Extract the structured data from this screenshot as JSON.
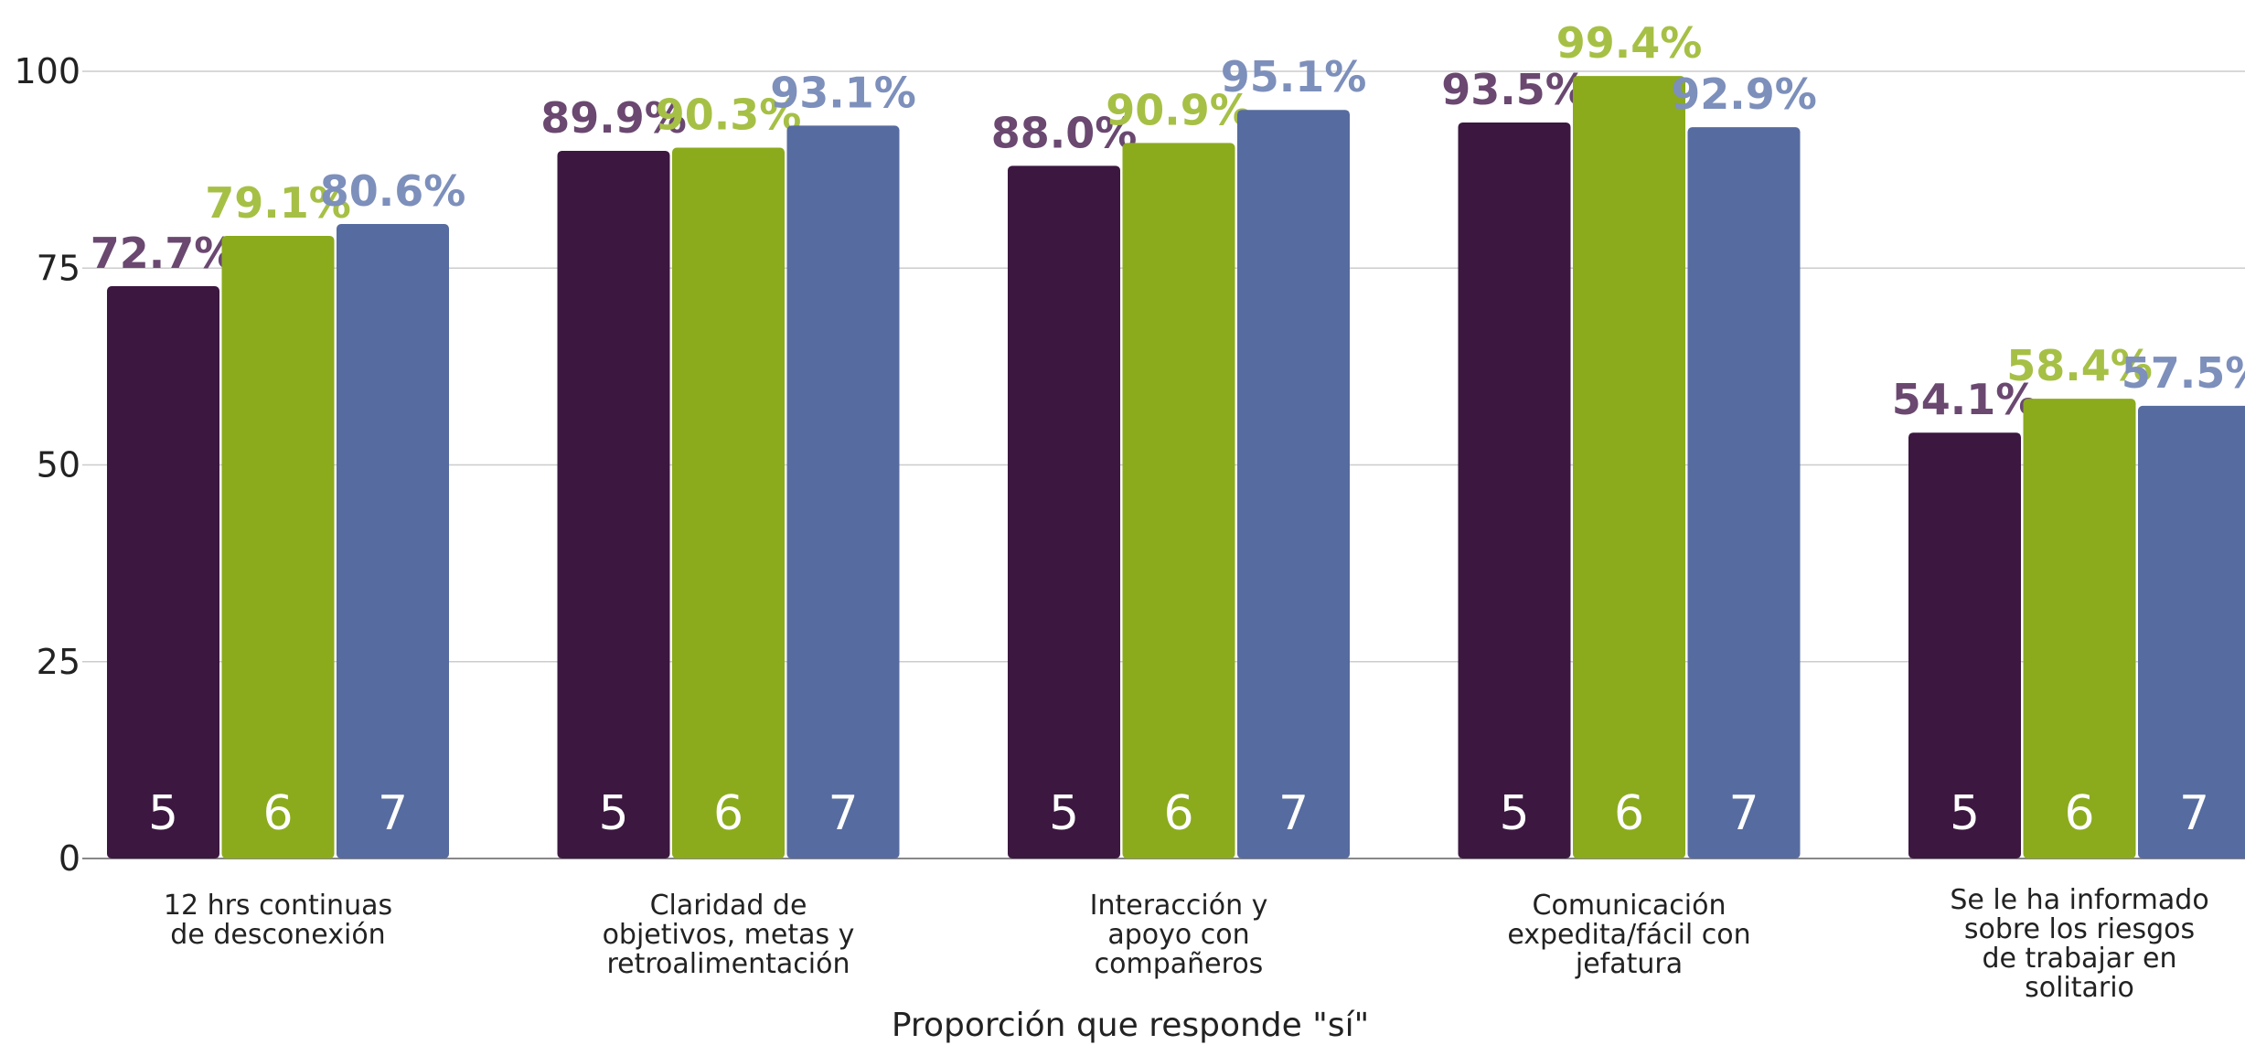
{
  "chart_data": {
    "type": "bar",
    "title": "",
    "xlabel": "Proporción que responde \"sí\"",
    "ylabel": "",
    "ylim": [
      0,
      100
    ],
    "yticks": [
      0,
      25,
      50,
      75,
      100
    ],
    "grid": true,
    "categories": [
      [
        "12 hrs continuas",
        "de desconexión"
      ],
      [
        "Claridad de",
        "objetivos, metas y",
        "retroalimentación"
      ],
      [
        "Interacción y",
        "apoyo con",
        "compañeros"
      ],
      [
        "Comunicación",
        "expedita/fácil con",
        "jefatura"
      ],
      [
        "Se le ha informado",
        "sobre los riesgos",
        "de trabajar en",
        "solitario"
      ]
    ],
    "series": [
      {
        "bar_label": "5",
        "color": "#3c1740",
        "label_color": "#6a4870",
        "values": [
          72.7,
          89.9,
          88.0,
          93.5,
          54.1
        ],
        "value_labels": [
          "72.7%",
          "89.9%",
          "88.0%",
          "93.5%",
          "54.1%"
        ]
      },
      {
        "bar_label": "6",
        "color": "#8bab1d",
        "label_color": "#a6c046",
        "values": [
          79.1,
          90.3,
          90.9,
          99.4,
          58.4
        ],
        "value_labels": [
          "79.1%",
          "90.3%",
          "90.9%",
          "99.4%",
          "58.4%"
        ]
      },
      {
        "bar_label": "7",
        "color": "#566b9f",
        "label_color": "#7d8fbb",
        "values": [
          80.6,
          93.1,
          95.1,
          92.9,
          57.5
        ],
        "value_labels": [
          "80.6%",
          "93.1%",
          "95.1%",
          "92.9%",
          "57.5%"
        ]
      }
    ]
  }
}
